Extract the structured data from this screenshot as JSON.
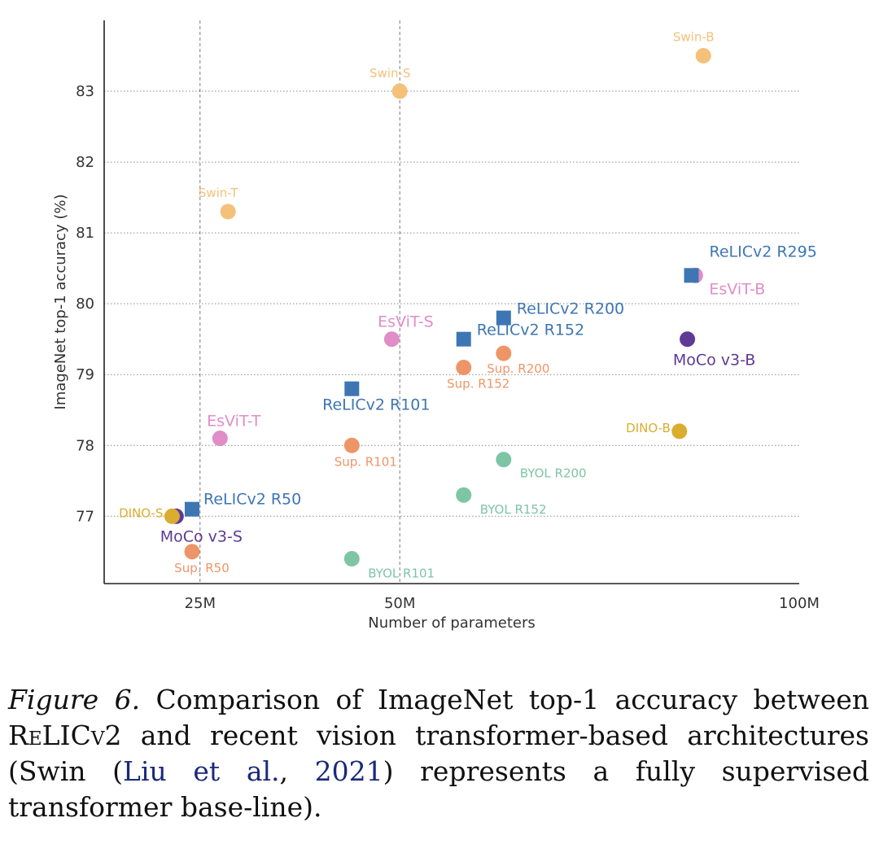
{
  "chart_data": {
    "type": "scatter",
    "title": "",
    "xlabel": "Number of parameters",
    "ylabel": "ImageNet top-1 accuracy (%)",
    "xlim": [
      13,
      100
    ],
    "ylim": [
      76.05,
      84
    ],
    "x_ticks": [
      {
        "value": 25,
        "label": "25M"
      },
      {
        "value": 50,
        "label": "50M"
      },
      {
        "value": 100,
        "label": "100M"
      }
    ],
    "y_ticks": [
      77,
      78,
      79,
      80,
      81,
      82,
      83
    ],
    "grid": {
      "horizontal": "dotted",
      "vertical": "dashed at 25M and 50M"
    },
    "legend": "none",
    "series": [
      {
        "group": "Swin",
        "marker": "circle",
        "color": "#f5c07a",
        "points": [
          {
            "label": "Swin-T",
            "x": 28.5,
            "y": 81.3
          },
          {
            "label": "Swin-S",
            "x": 50,
            "y": 83.0
          },
          {
            "label": "Swin-B",
            "x": 88,
            "y": 83.5
          }
        ]
      },
      {
        "group": "EsViT",
        "marker": "circle",
        "color": "#e08dc8",
        "points": [
          {
            "label": "EsViT-T",
            "x": 27.5,
            "y": 78.1
          },
          {
            "label": "EsViT-S",
            "x": 49,
            "y": 79.5
          },
          {
            "label": "EsViT-B",
            "x": 87,
            "y": 80.4
          }
        ]
      },
      {
        "group": "ReLICv2",
        "marker": "square",
        "color": "#3d76b3",
        "points": [
          {
            "label": "ReLICv2 R50",
            "x": 24,
            "y": 77.1
          },
          {
            "label": "ReLICv2 R101",
            "x": 44,
            "y": 78.8
          },
          {
            "label": "ReLICv2 R152",
            "x": 58,
            "y": 79.5
          },
          {
            "label": "ReLICv2 R200",
            "x": 63,
            "y": 79.8
          },
          {
            "label": "ReLICv2 R295",
            "x": 86.5,
            "y": 80.4
          }
        ]
      },
      {
        "group": "Sup.",
        "marker": "circle",
        "color": "#ee9568",
        "points": [
          {
            "label": "Sup. R50",
            "x": 24,
            "y": 76.5
          },
          {
            "label": "Sup. R101",
            "x": 44,
            "y": 78.0
          },
          {
            "label": "Sup. R152",
            "x": 58,
            "y": 79.1
          },
          {
            "label": "Sup. R200",
            "x": 63,
            "y": 79.3
          }
        ]
      },
      {
        "group": "BYOL",
        "marker": "circle",
        "color": "#7ec5a5",
        "points": [
          {
            "label": "BYOL R101",
            "x": 44,
            "y": 76.4
          },
          {
            "label": "BYOL R152",
            "x": 58,
            "y": 77.3
          },
          {
            "label": "BYOL R200",
            "x": 63,
            "y": 77.8
          }
        ]
      },
      {
        "group": "MoCo v3",
        "marker": "circle",
        "color": "#5e3a94",
        "points": [
          {
            "label": "MoCo v3-S",
            "x": 22,
            "y": 77.0
          },
          {
            "label": "MoCo v3-B",
            "x": 86,
            "y": 79.5
          }
        ]
      },
      {
        "group": "DINO",
        "marker": "circle",
        "color": "#d9ad2d",
        "points": [
          {
            "label": "DINO-S",
            "x": 21.5,
            "y": 77.0
          },
          {
            "label": "DINO-B",
            "x": 85,
            "y": 78.2
          }
        ]
      }
    ]
  },
  "caption": {
    "figure_label": "Figure 6.",
    "text_1": " Comparison of ImageNet top-1 accuracy between ",
    "method_name": "ReLICv2",
    "text_2": " and recent vision transformer-based architectures (Swin (",
    "citation_authors": "Liu et al.",
    "citation_sep": ", ",
    "citation_year": "2021",
    "text_3": ") represents a fully supervised transformer base-line)."
  }
}
